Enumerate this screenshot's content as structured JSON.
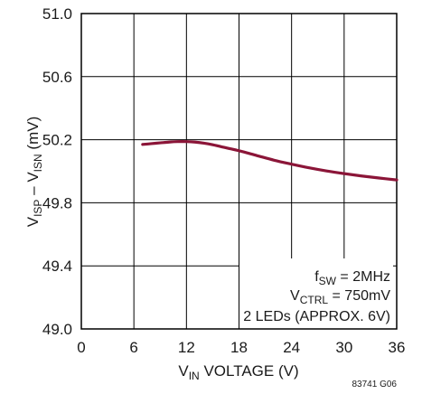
{
  "chart_data": {
    "type": "line",
    "title": "",
    "xlabel": {
      "main": "V",
      "sub": "IN",
      "rest": " VOLTAGE (V)"
    },
    "ylabel": {
      "v1": "V",
      "s1": "ISP",
      "mid": " – V",
      "s2": "ISN",
      "rest": " (mV)"
    },
    "xlim": [
      0,
      36
    ],
    "ylim": [
      49.0,
      51.0
    ],
    "x_ticks": [
      0,
      6,
      12,
      18,
      24,
      30,
      36
    ],
    "x_tick_labels": [
      "0",
      "6",
      "12",
      "18",
      "24",
      "30",
      "36"
    ],
    "y_ticks": [
      49.0,
      49.4,
      49.8,
      50.2,
      50.6,
      51.0
    ],
    "y_tick_labels": [
      "49.0",
      "49.4",
      "49.8",
      "50.2",
      "50.6",
      "51.0"
    ],
    "grid": true,
    "series": [
      {
        "x": [
          7,
          8,
          9,
          10,
          11,
          12,
          13,
          14,
          15,
          16,
          18,
          20,
          22,
          24,
          26,
          28,
          30,
          32,
          34,
          36
        ],
        "y": [
          50.17,
          50.175,
          50.18,
          50.185,
          50.188,
          50.188,
          50.185,
          50.178,
          50.168,
          50.155,
          50.13,
          50.1,
          50.07,
          50.045,
          50.022,
          50.002,
          49.985,
          49.97,
          49.957,
          49.945
        ]
      }
    ],
    "annotations": {
      "line1": {
        "main": "f",
        "sub": "SW",
        "rest": " = 2MHz"
      },
      "line2": {
        "main": "V",
        "sub": "CTRL",
        "rest": " = 750mV"
      },
      "line3": "2 LEDs (APPROX. 6V)"
    },
    "figure_id": "83741 G06"
  },
  "colors": {
    "series": "#8b1538",
    "grid": "#000000",
    "text": "#1a1a1a"
  }
}
